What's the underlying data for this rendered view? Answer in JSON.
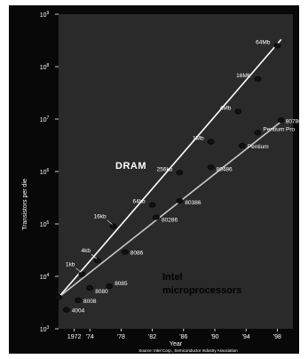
{
  "chart_data": {
    "type": "scatter",
    "xlabel": "Year",
    "ylabel": "Transistors per die",
    "xlim": [
      1970,
      2000
    ],
    "ylim": [
      1000,
      1000000000
    ],
    "yscale": "log",
    "x_ticks": [
      {
        "value": 1972,
        "label": "1972"
      },
      {
        "value": 1974,
        "label": "'74"
      },
      {
        "value": 1978,
        "label": "'78"
      },
      {
        "value": 1982,
        "label": "'82"
      },
      {
        "value": 1986,
        "label": "'86"
      },
      {
        "value": 1990,
        "label": "'90"
      },
      {
        "value": 1994,
        "label": "'94"
      },
      {
        "value": 1998,
        "label": "'98"
      }
    ],
    "y_ticks": [
      {
        "value": 1000,
        "base": "10",
        "exp": "3"
      },
      {
        "value": 10000,
        "base": "10",
        "exp": "4"
      },
      {
        "value": 100000,
        "base": "10",
        "exp": "5"
      },
      {
        "value": 1000000,
        "base": "10",
        "exp": "6"
      },
      {
        "value": 10000000,
        "base": "10",
        "exp": "7"
      },
      {
        "value": 100000000,
        "base": "10",
        "exp": "8"
      },
      {
        "value": 1000000000,
        "base": "10",
        "exp": "9"
      }
    ],
    "grid": false,
    "trend_lines": [
      {
        "name": "DRAM",
        "x": [
          1970,
          1998.5
        ],
        "y": [
          4000,
          330000000
        ],
        "color": "#ffffff"
      },
      {
        "name": "Intel microprocessors",
        "x": [
          1970,
          1998.5
        ],
        "y": [
          4000,
          9000000
        ],
        "color": "#c8c8c8"
      }
    ],
    "series": [
      {
        "name": "DRAM",
        "points": [
          {
            "x": 1970,
            "y": 4000,
            "label": ""
          },
          {
            "x": 1973,
            "y": 11000,
            "label": "1kb"
          },
          {
            "x": 1975,
            "y": 20000,
            "label": "4kb"
          },
          {
            "x": 1977,
            "y": 90000,
            "label": "16kb"
          },
          {
            "x": 1982,
            "y": 230000,
            "label": "64kb"
          },
          {
            "x": 1985.5,
            "y": 950000,
            "label": "256kb"
          },
          {
            "x": 1989.5,
            "y": 3700000,
            "label": "1Mb"
          },
          {
            "x": 1993,
            "y": 14000000,
            "label": "4Mb"
          },
          {
            "x": 1995.5,
            "y": 58000000,
            "label": "16Mb"
          },
          {
            "x": 1998,
            "y": 250000000,
            "label": "64Mb"
          }
        ]
      },
      {
        "name": "Intel microprocessors",
        "points": [
          {
            "x": 1971,
            "y": 2300,
            "label": "4004"
          },
          {
            "x": 1972.5,
            "y": 3500,
            "label": "8008"
          },
          {
            "x": 1974,
            "y": 6000,
            "label": "8080"
          },
          {
            "x": 1976.5,
            "y": 6500,
            "label": "8085"
          },
          {
            "x": 1978.5,
            "y": 29000,
            "label": "8086"
          },
          {
            "x": 1982.5,
            "y": 134000,
            "label": "80286"
          },
          {
            "x": 1985.5,
            "y": 275000,
            "label": "80386"
          },
          {
            "x": 1989.5,
            "y": 1200000,
            "label": "80486"
          },
          {
            "x": 1993.5,
            "y": 3100000,
            "label": "Pentium"
          },
          {
            "x": 1995.5,
            "y": 5500000,
            "label": "Pentium Pro"
          },
          {
            "x": 1998.5,
            "y": 9500000,
            "label": "80786"
          }
        ]
      }
    ],
    "annotations": [
      {
        "id": "dram",
        "text": "DRAM"
      },
      {
        "id": "intel_line1",
        "text": "Intel"
      },
      {
        "id": "intel_line2",
        "text": "microprocessors"
      }
    ],
    "source": "Source: Intel Corp., Semiconductor Industry Association"
  },
  "colors": {
    "frame_background": "#080808",
    "plot_background": "#2a2a2a",
    "foreground": "#ffffff",
    "marker": "#111111"
  }
}
